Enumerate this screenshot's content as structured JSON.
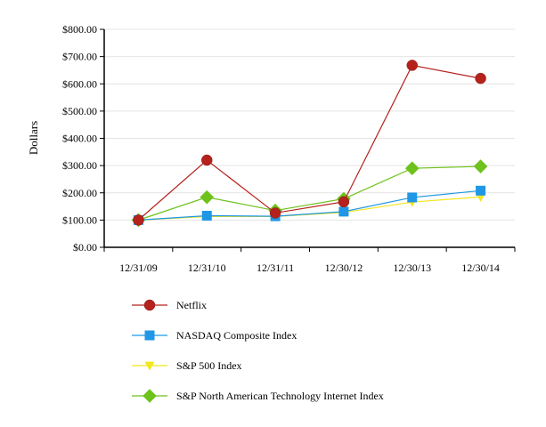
{
  "chart_data": {
    "type": "line",
    "title": "",
    "xlabel": "",
    "ylabel": "Dollars",
    "categories": [
      "12/31/09",
      "12/31/10",
      "12/31/11",
      "12/30/12",
      "12/30/13",
      "12/30/14"
    ],
    "ylim": [
      0,
      800
    ],
    "yticks": [
      0,
      100,
      200,
      300,
      400,
      500,
      600,
      700,
      800
    ],
    "ytick_labels": [
      "$0.00",
      "$100.00",
      "$200.00",
      "$300.00",
      "$400.00",
      "$500.00",
      "$600.00",
      "$700.00",
      "$800.00"
    ],
    "grid": true,
    "legend_position": "bottom",
    "series": [
      {
        "name": "Netflix",
        "values": [
          100,
          320,
          126,
          167,
          668,
          620
        ],
        "color": "#b5221c",
        "marker": "circle"
      },
      {
        "name": "NASDAQ Composite Index",
        "values": [
          100,
          116,
          114,
          131,
          183,
          208
        ],
        "color": "#1f97e6",
        "marker": "square"
      },
      {
        "name": "S&P 500 Index",
        "values": [
          100,
          113,
          113,
          128,
          166,
          185
        ],
        "color": "#f2e61e",
        "marker": "triangle-down"
      },
      {
        "name": "S&P North American Technology Internet Index",
        "values": [
          100,
          184,
          135,
          178,
          290,
          297
        ],
        "color": "#6ec21b",
        "marker": "diamond"
      }
    ]
  }
}
